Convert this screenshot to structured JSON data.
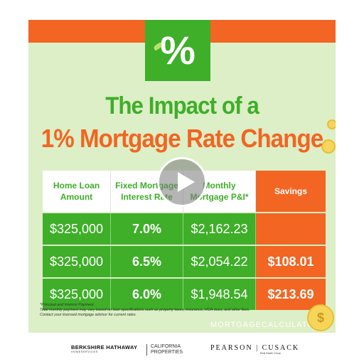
{
  "header": {
    "symbol": "%",
    "title_line1": "The Impact of a",
    "title_line2": "1% Mortgage Rate Change"
  },
  "table": {
    "headers": [
      "Home Loan Amount",
      "Fixed Mortgage Interest Rate",
      "Monthly Mortgage P&I*",
      "Savings"
    ],
    "rows": [
      {
        "amount": "$325,000",
        "rate": "7.0%",
        "payment": "$2,162.23",
        "savings": ""
      },
      {
        "amount": "$325,000",
        "rate": "6.5%",
        "payment": "$2,054.22",
        "savings": "$108.01"
      },
      {
        "amount": "$325,000",
        "rate": "6.0%",
        "payment": "$1,948.54",
        "savings": "$213.69"
      }
    ]
  },
  "notes": {
    "line1": "*Principal and Interest Payment.",
    "line2": "Total monthly payment may vary based on loan specifications such as property taxes, insurance, HOA dues, and other fees.",
    "line3": "Contact your licensed mortgage advisor for current rates."
  },
  "watermark": "MORTGAGECALCULATOR",
  "footer": {
    "brand1_main": "BERKSHIRE HATHAWAY",
    "brand1_sub": "HOMESERVICES",
    "brand1_region_1": "CALIFORNIA",
    "brand1_region_2": "PROPERTIES",
    "brand2_main": "PEARSON | CUSACK",
    "brand2_sub": "Real Estate Group"
  },
  "colors": {
    "green": "#3fae29",
    "orange": "#f26522",
    "background": "#dcefc6"
  },
  "icons": [
    "percent-icon",
    "play-icon",
    "coin-icon"
  ]
}
